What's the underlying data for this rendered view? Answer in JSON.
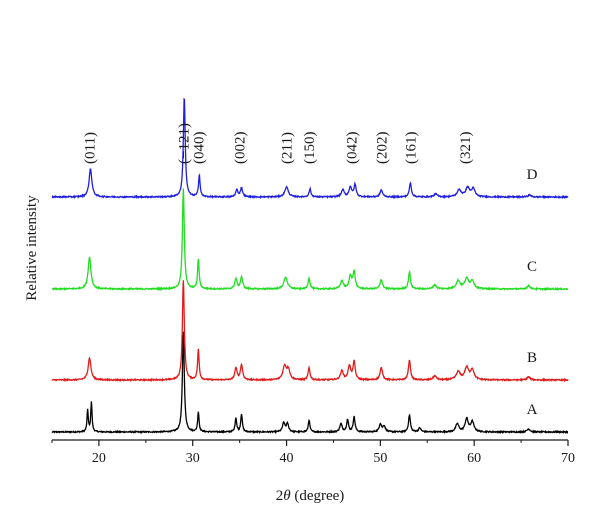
{
  "chart_data": {
    "type": "line",
    "title": "",
    "xlabel_prefix": "2",
    "xlabel_symbol": "θ",
    "xlabel_suffix": " (degree)",
    "ylabel": "Relative intensity",
    "xlim": [
      15,
      70
    ],
    "x_ticks": [
      20,
      30,
      40,
      50,
      60,
      70
    ],
    "y_ticks_shown": false,
    "grid": false,
    "legend": "none",
    "series_offset": 1.0,
    "peak_labels": [
      {
        "text": "(011)",
        "x": 19.0
      },
      {
        "text": "(−121)",
        "x": 29.0
      },
      {
        "text": "(040)",
        "x": 30.6
      },
      {
        "text": "(002)",
        "x": 35.0
      },
      {
        "text": "(211)",
        "x": 40.0
      },
      {
        "text": "(150)",
        "x": 42.4
      },
      {
        "text": "(042)",
        "x": 46.9
      },
      {
        "text": "(202)",
        "x": 50.1
      },
      {
        "text": "(161)",
        "x": 53.2
      },
      {
        "text": "(321)",
        "x": 59.0
      }
    ],
    "series": [
      {
        "tag": "A",
        "color": "#000000",
        "peaks": [
          [
            18.8,
            0.22,
            0.08
          ],
          [
            19.2,
            0.3,
            0.08
          ],
          [
            29.0,
            1.0,
            0.12
          ],
          [
            30.6,
            0.2,
            0.09
          ],
          [
            34.6,
            0.14,
            0.1
          ],
          [
            35.2,
            0.18,
            0.1
          ],
          [
            39.7,
            0.09,
            0.15
          ],
          [
            40.1,
            0.08,
            0.15
          ],
          [
            42.4,
            0.12,
            0.1
          ],
          [
            45.8,
            0.08,
            0.15
          ],
          [
            46.5,
            0.12,
            0.12
          ],
          [
            47.2,
            0.15,
            0.12
          ],
          [
            50.0,
            0.08,
            0.15
          ],
          [
            50.4,
            0.06,
            0.15
          ],
          [
            53.1,
            0.17,
            0.12
          ],
          [
            54.2,
            0.04,
            0.15
          ],
          [
            58.2,
            0.08,
            0.2
          ],
          [
            59.2,
            0.13,
            0.2
          ],
          [
            59.8,
            0.1,
            0.2
          ],
          [
            65.8,
            0.03,
            0.2
          ]
        ]
      },
      {
        "tag": "B",
        "color": "#e01b1b",
        "peaks": [
          [
            19.0,
            0.22,
            0.18
          ],
          [
            29.0,
            1.0,
            0.12
          ],
          [
            30.6,
            0.3,
            0.1
          ],
          [
            34.6,
            0.12,
            0.14
          ],
          [
            35.2,
            0.15,
            0.14
          ],
          [
            39.8,
            0.14,
            0.22
          ],
          [
            40.2,
            0.1,
            0.18
          ],
          [
            42.4,
            0.12,
            0.12
          ],
          [
            45.9,
            0.09,
            0.18
          ],
          [
            46.7,
            0.14,
            0.16
          ],
          [
            47.2,
            0.18,
            0.14
          ],
          [
            50.1,
            0.12,
            0.16
          ],
          [
            53.1,
            0.2,
            0.13
          ],
          [
            55.8,
            0.04,
            0.2
          ],
          [
            58.3,
            0.08,
            0.25
          ],
          [
            59.2,
            0.12,
            0.25
          ],
          [
            59.8,
            0.1,
            0.22
          ],
          [
            65.8,
            0.03,
            0.2
          ]
        ]
      },
      {
        "tag": "C",
        "color": "#22dd22",
        "peaks": [
          [
            19.0,
            0.32,
            0.18
          ],
          [
            29.0,
            1.0,
            0.12
          ],
          [
            30.6,
            0.3,
            0.1
          ],
          [
            34.6,
            0.1,
            0.14
          ],
          [
            35.2,
            0.12,
            0.14
          ],
          [
            39.9,
            0.12,
            0.22
          ],
          [
            42.4,
            0.11,
            0.12
          ],
          [
            45.9,
            0.08,
            0.18
          ],
          [
            46.8,
            0.13,
            0.16
          ],
          [
            47.2,
            0.17,
            0.14
          ],
          [
            50.1,
            0.09,
            0.16
          ],
          [
            53.1,
            0.17,
            0.13
          ],
          [
            55.8,
            0.04,
            0.2
          ],
          [
            58.3,
            0.08,
            0.25
          ],
          [
            59.2,
            0.1,
            0.25
          ],
          [
            59.8,
            0.08,
            0.22
          ],
          [
            65.8,
            0.03,
            0.2
          ]
        ]
      },
      {
        "tag": "D",
        "color": "#1f1fe0",
        "peaks": [
          [
            19.1,
            0.28,
            0.18
          ],
          [
            29.1,
            1.0,
            0.12
          ],
          [
            30.7,
            0.22,
            0.1
          ],
          [
            34.7,
            0.07,
            0.14
          ],
          [
            35.2,
            0.09,
            0.14
          ],
          [
            40.0,
            0.1,
            0.22
          ],
          [
            42.5,
            0.08,
            0.12
          ],
          [
            46.0,
            0.07,
            0.18
          ],
          [
            46.8,
            0.1,
            0.16
          ],
          [
            47.3,
            0.12,
            0.14
          ],
          [
            50.1,
            0.07,
            0.16
          ],
          [
            53.2,
            0.14,
            0.13
          ],
          [
            55.9,
            0.03,
            0.2
          ],
          [
            58.4,
            0.07,
            0.25
          ],
          [
            59.3,
            0.09,
            0.25
          ],
          [
            59.9,
            0.08,
            0.22
          ],
          [
            65.9,
            0.02,
            0.2
          ]
        ]
      }
    ]
  }
}
